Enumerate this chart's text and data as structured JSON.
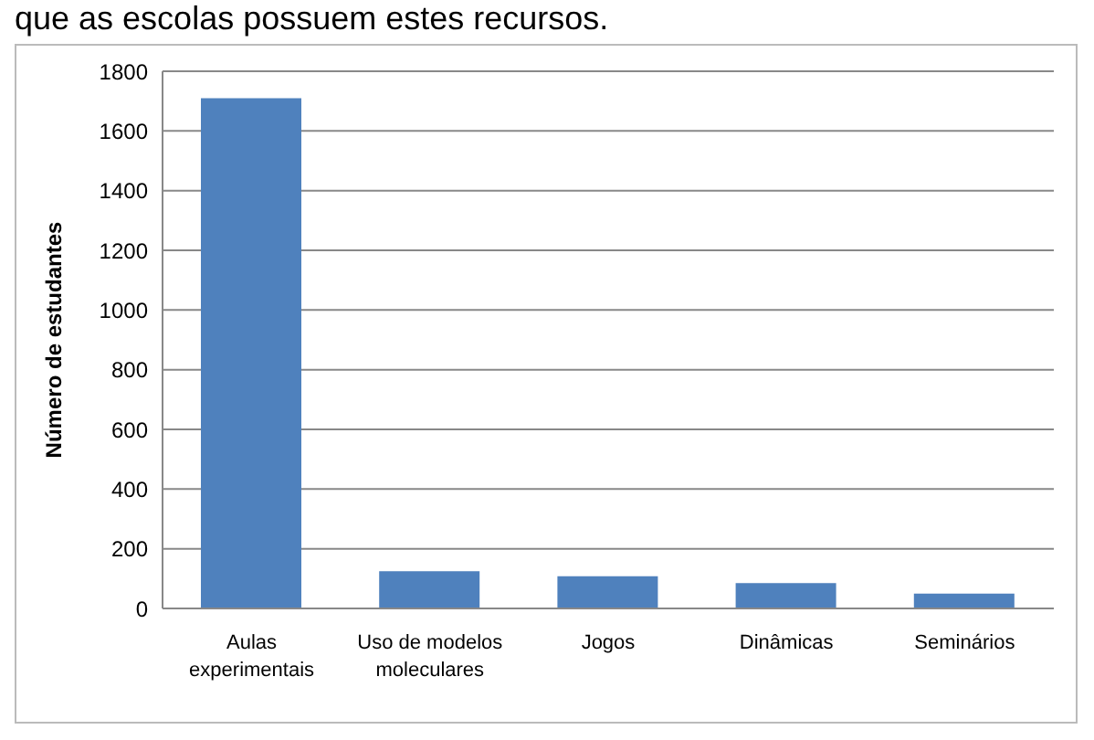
{
  "chart_data": {
    "type": "bar",
    "annotations": [
      "que as escolas possuem estes recursos."
    ],
    "ylabel": "Número de estudantes",
    "categories": [
      "Aulas experimentais",
      "Uso de modelos moleculares",
      "Jogos",
      "Dinâmicas",
      "Seminários"
    ],
    "values": [
      1710,
      125,
      108,
      85,
      50
    ],
    "color": "#4f81bd",
    "ylim": [
      0,
      1800
    ],
    "yticks": [
      0,
      200,
      400,
      600,
      800,
      1000,
      1200,
      1400,
      1600,
      1800
    ],
    "grid": "y"
  }
}
